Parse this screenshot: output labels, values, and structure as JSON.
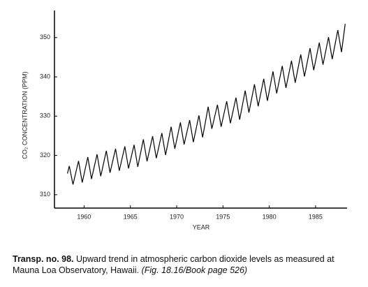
{
  "chart_data": {
    "type": "line",
    "xlabel": "YEAR",
    "ylabel": "CO₂ CONCENTRATION (PPM)",
    "x": [
      1958.2,
      1958.4,
      1958.8,
      1959.4,
      1959.8,
      1960.4,
      1960.8,
      1961.4,
      1961.8,
      1962.4,
      1962.8,
      1963.4,
      1963.8,
      1964.4,
      1964.8,
      1965.4,
      1965.8,
      1966.4,
      1966.8,
      1967.4,
      1967.8,
      1968.4,
      1968.8,
      1969.4,
      1969.8,
      1970.4,
      1970.8,
      1971.4,
      1971.8,
      1972.4,
      1972.8,
      1973.4,
      1973.8,
      1974.4,
      1974.8,
      1975.4,
      1975.8,
      1976.4,
      1976.8,
      1977.4,
      1977.8,
      1978.4,
      1978.8,
      1979.4,
      1979.8,
      1980.4,
      1980.8,
      1981.4,
      1981.8,
      1982.4,
      1982.8,
      1983.4,
      1983.8,
      1984.4,
      1984.8,
      1985.4,
      1985.8,
      1986.4,
      1986.8,
      1987.4,
      1987.8,
      1988.2
    ],
    "series": [
      {
        "color": "#000000",
        "values": [
          315.4,
          317.3,
          312.6,
          318.6,
          313.1,
          319.6,
          314.0,
          320.3,
          314.7,
          321.2,
          315.6,
          321.7,
          316.1,
          322.3,
          316.7,
          322.7,
          317.1,
          324.1,
          318.5,
          324.9,
          319.3,
          325.7,
          320.1,
          327.3,
          321.7,
          328.4,
          322.8,
          329.0,
          323.4,
          330.2,
          324.6,
          332.4,
          326.8,
          332.9,
          327.3,
          333.8,
          328.2,
          334.7,
          329.1,
          336.5,
          330.9,
          338.1,
          332.5,
          339.5,
          333.9,
          341.4,
          335.8,
          342.8,
          337.2,
          344.1,
          338.5,
          345.7,
          340.1,
          347.3,
          341.7,
          348.7,
          343.1,
          350.1,
          344.5,
          351.9,
          346.3,
          353.5
        ]
      }
    ],
    "xlim": [
      1956.8,
      1988.4
    ],
    "xticks": [
      1960,
      1965,
      1970,
      1975,
      1980,
      1985
    ],
    "ylim": [
      306.6,
      356.9
    ],
    "yticks": [
      310,
      320,
      330,
      340,
      350
    ],
    "grid": false
  },
  "caption": {
    "label": "Transp. no. 98.",
    "text": "Upward trend in atmospheric carbon dioxide levels as measured at Mauna Loa Observatory, Hawaii.",
    "reference": "(Fig. 18.16/Book page 526)"
  }
}
